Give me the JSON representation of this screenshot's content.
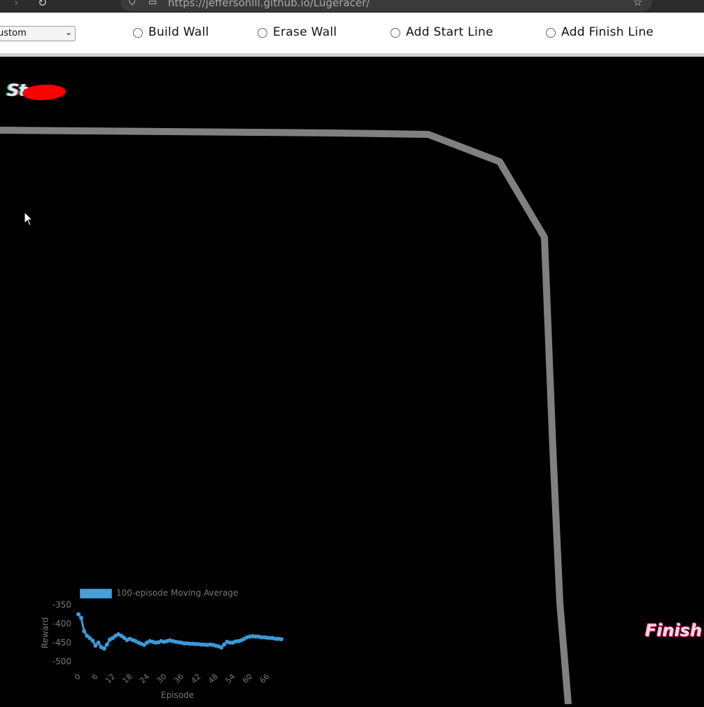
{
  "browser": {
    "url": "https://jeffersonlll.github.io/Lugeracer/"
  },
  "toolbar": {
    "track_select": {
      "value": "Custom",
      "visible_text": "ustom"
    },
    "modes": [
      {
        "label": "Build Wall",
        "selected": false
      },
      {
        "label": "Erase Wall",
        "selected": false
      },
      {
        "label": "Add Start Line",
        "selected": false
      },
      {
        "label": "Add Finish Line",
        "selected": false
      }
    ]
  },
  "canvas": {
    "start_label": "St",
    "finish_label": "Finish",
    "wall_color": "#808080",
    "car_color": "#ff0000"
  },
  "chart_data": {
    "type": "line",
    "xlabel": "Episode",
    "ylabel": "Reward",
    "ylim": [
      -500,
      -350
    ],
    "yticks": [
      -350,
      -400,
      -450,
      -500
    ],
    "xticks": [
      0,
      6,
      12,
      18,
      24,
      30,
      36,
      42,
      48,
      54,
      60,
      66
    ],
    "series": [
      {
        "name": "100-episode Moving Average",
        "color": "#3a9ad9",
        "x": [
          0,
          1,
          2,
          3,
          4,
          5,
          6,
          7,
          8,
          9,
          10,
          11,
          12,
          13,
          14,
          15,
          16,
          17,
          18,
          19,
          20,
          21,
          22,
          23,
          24,
          25,
          26,
          27,
          28,
          29,
          30,
          31,
          32,
          33,
          34,
          35,
          36,
          37,
          38,
          39,
          40,
          41,
          42,
          43,
          44,
          45,
          46,
          47,
          48,
          49,
          50,
          51,
          52,
          53,
          54,
          55,
          56,
          57,
          58,
          59,
          60,
          61,
          62,
          63,
          64,
          65,
          66,
          67,
          68,
          69,
          70,
          71
        ],
        "values": [
          -375,
          -385,
          -420,
          -432,
          -438,
          -445,
          -458,
          -450,
          -462,
          -466,
          -455,
          -442,
          -438,
          -432,
          -428,
          -432,
          -437,
          -443,
          -440,
          -443,
          -446,
          -450,
          -453,
          -456,
          -450,
          -446,
          -448,
          -450,
          -449,
          -446,
          -448,
          -446,
          -444,
          -446,
          -448,
          -449,
          -450,
          -452,
          -452,
          -453,
          -453,
          -454,
          -454,
          -455,
          -455,
          -456,
          -455,
          -456,
          -458,
          -460,
          -463,
          -455,
          -448,
          -450,
          -450,
          -447,
          -446,
          -444,
          -440,
          -436,
          -434,
          -433,
          -434,
          -434,
          -436,
          -436,
          -437,
          -438,
          -438,
          -440,
          -440,
          -441
        ]
      }
    ]
  }
}
